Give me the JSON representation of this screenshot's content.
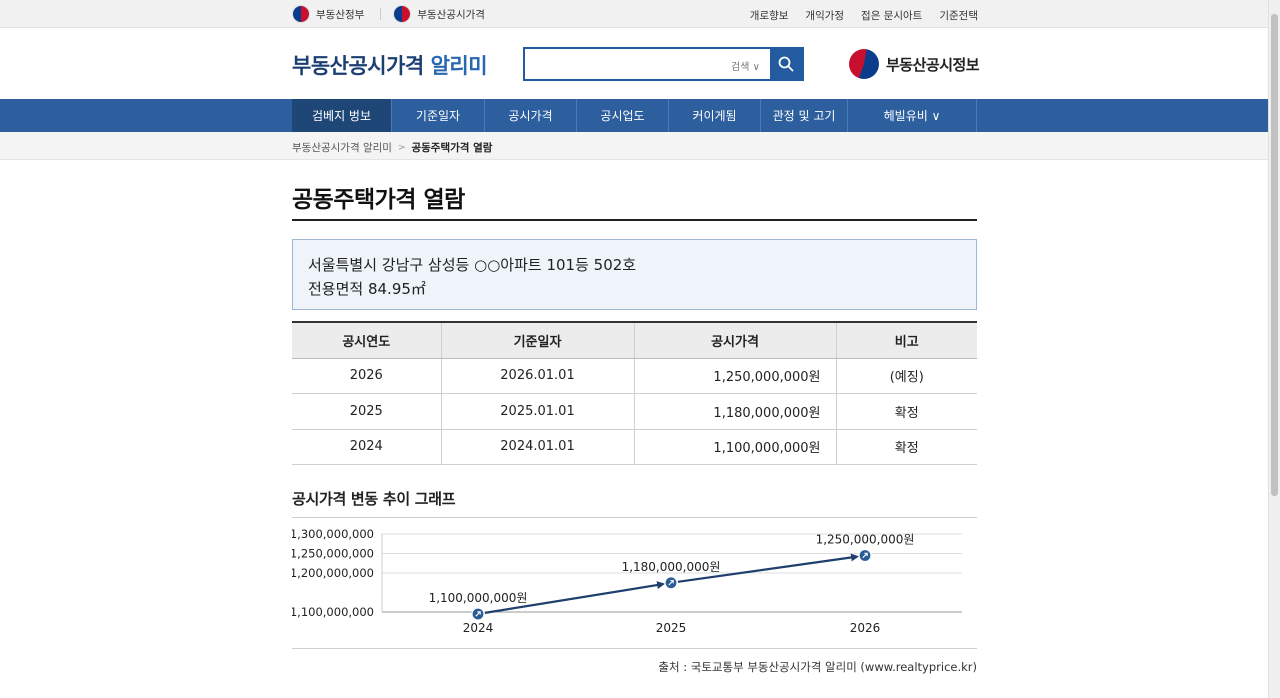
{
  "util": {
    "left_links": [
      "부동산정부",
      "부동산공시가격"
    ],
    "right_links": [
      "개로향보",
      "개익가정",
      "접은 문시아트",
      "기준전택"
    ]
  },
  "header": {
    "title_main": "부동산공시가격",
    "title_accent": "알리미",
    "search_placeholder": "",
    "search_option": "검색 ∨",
    "brand_right": "부동산공시정보"
  },
  "nav": {
    "items": [
      "검베지 벙보",
      "기준일자",
      "공시가격",
      "공시업도",
      "커이게됨",
      "관정 및 고기",
      "헤빌유비 ∨"
    ],
    "active_index": 0
  },
  "breadcrumb": {
    "home": "부동산공시가격 알리미",
    "sep": ">",
    "current": "공동주택가격 열람"
  },
  "page_title": "공동주택가격 열람",
  "info": {
    "address": "서울특별시 강남구 삼성등 ○○아파트 101등 502호",
    "area": "전용면적 84.95㎡"
  },
  "table": {
    "headers": [
      "공시연도",
      "기준일자",
      "공시가격",
      "비고"
    ],
    "rows": [
      [
        "2026",
        "2026.01.01",
        "1,250,000,000원",
        "(예징)"
      ],
      [
        "2025",
        "2025.01.01",
        "1,180,000,000원",
        "확정"
      ],
      [
        "2024",
        "2024.01.01",
        "1,100,000,000원",
        "확정"
      ]
    ]
  },
  "chart_title": "공시가격 변동 추이 그래프",
  "chart_data": {
    "type": "line",
    "x": [
      "2024",
      "2025",
      "2026"
    ],
    "values": [
      1100000000,
      1180000000,
      1250000000
    ],
    "point_labels": [
      "1,100,000,000원",
      "1,180,000,000원",
      "1,250,000,000원"
    ],
    "y_ticks": [
      1100000000,
      1200000000,
      1250000000,
      1300000000
    ],
    "y_tick_labels": [
      "1,100,000,000",
      "1,200,000,000",
      "1,250,000,000",
      "1,300,000,000"
    ],
    "ylim": [
      1100000000,
      1300000000
    ],
    "line_color": "#1f3f6e",
    "grid": true
  },
  "source": "출처 : 국토교통부 부동산공시가격 알리미 (www.realtyprice.kr)"
}
